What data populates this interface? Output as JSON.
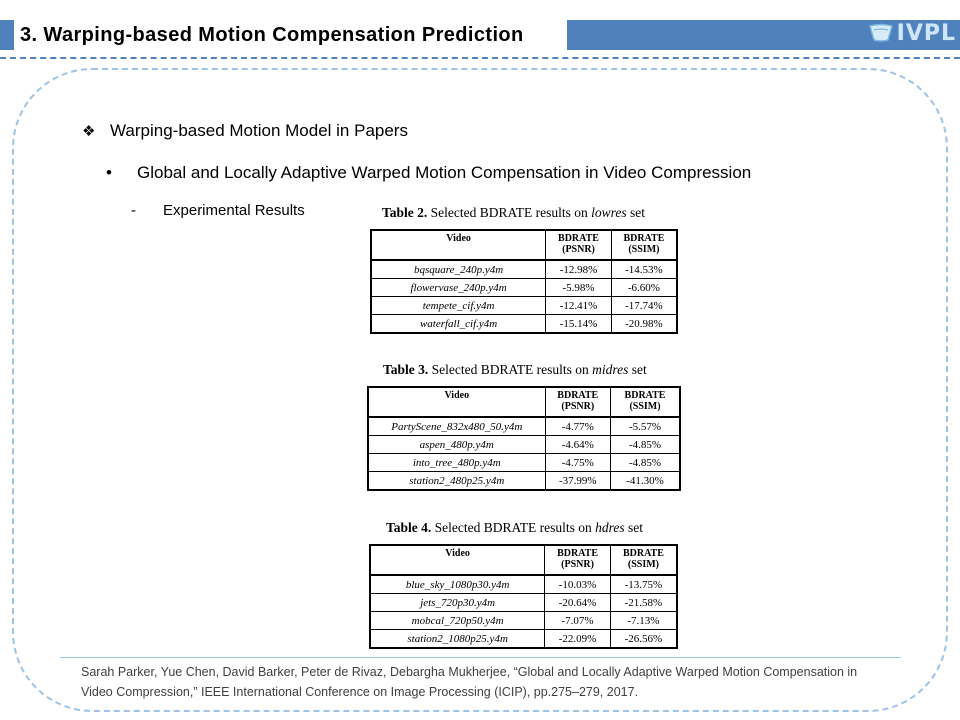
{
  "header": {
    "title": "3. Warping-based  Motion Compensation  Prediction",
    "logo_text": "IVPL",
    "accent_color": "#4f81bd"
  },
  "content": {
    "bullet1": {
      "symbol": "❖",
      "text": "Warping-based Motion Model in Papers"
    },
    "bullet2": {
      "symbol": "•",
      "text": "Global and Locally Adaptive Warped Motion Compensation in Video Compression"
    },
    "bullet3": {
      "symbol": "-",
      "text": "Experimental Results"
    }
  },
  "tables": [
    {
      "caption_label": "Table 2.",
      "caption_text": " Selected  BDRATE results on ",
      "caption_set": "lowres",
      "caption_suffix": " set",
      "headers": [
        "Video",
        "BDRATE (PSNR)",
        "BDRATE (SSIM)"
      ],
      "rows": [
        [
          "bqsquare_240p.y4m",
          "-12.98%",
          "-14.53%"
        ],
        [
          "flowervase_240p.y4m",
          "-5.98%",
          "-6.60%"
        ],
        [
          "tempete_cif.y4m",
          "-12.41%",
          "-17.74%"
        ],
        [
          "waterfall_cif.y4m",
          "-15.14%",
          "-20.98%"
        ]
      ]
    },
    {
      "caption_label": "Table 3.",
      "caption_text": " Selected BDRATE results on ",
      "caption_set": "midres",
      "caption_suffix": " set",
      "headers": [
        "Video",
        "BDRATE (PSNR)",
        "BDRATE (SSIM)"
      ],
      "rows": [
        [
          "PartyScene_832x480_50.y4m",
          "-4.77%",
          "-5.57%"
        ],
        [
          "aspen_480p.y4m",
          "-4.64%",
          "-4.85%"
        ],
        [
          "into_tree_480p.y4m",
          "-4.75%",
          "-4.85%"
        ],
        [
          "station2_480p25.y4m",
          "-37.99%",
          "-41.30%"
        ]
      ]
    },
    {
      "caption_label": "Table 4.",
      "caption_text": " Selected BDRATE results on ",
      "caption_set": "hdres",
      "caption_suffix": " set",
      "headers": [
        "Video",
        "BDRATE (PSNR)",
        "BDRATE (SSIM)"
      ],
      "rows": [
        [
          "blue_sky_1080p30.y4m",
          "-10.03%",
          "-13.75%"
        ],
        [
          "jets_720p30.y4m",
          "-20.64%",
          "-21.58%"
        ],
        [
          "mobcal_720p50.y4m",
          "-7.07%",
          "-7.13%"
        ],
        [
          "station2_1080p25.y4m",
          "-22.09%",
          "-26.56%"
        ]
      ]
    }
  ],
  "footer": {
    "citation": "Sarah Parker, Yue Chen, David Barker, Peter de Rivaz, Debargha Mukherjee, “Global and Locally Adaptive Warped Motion Compensation in Video Compression,” IEEE International Conference on Image Processing (ICIP), pp.275–279, 2017."
  }
}
